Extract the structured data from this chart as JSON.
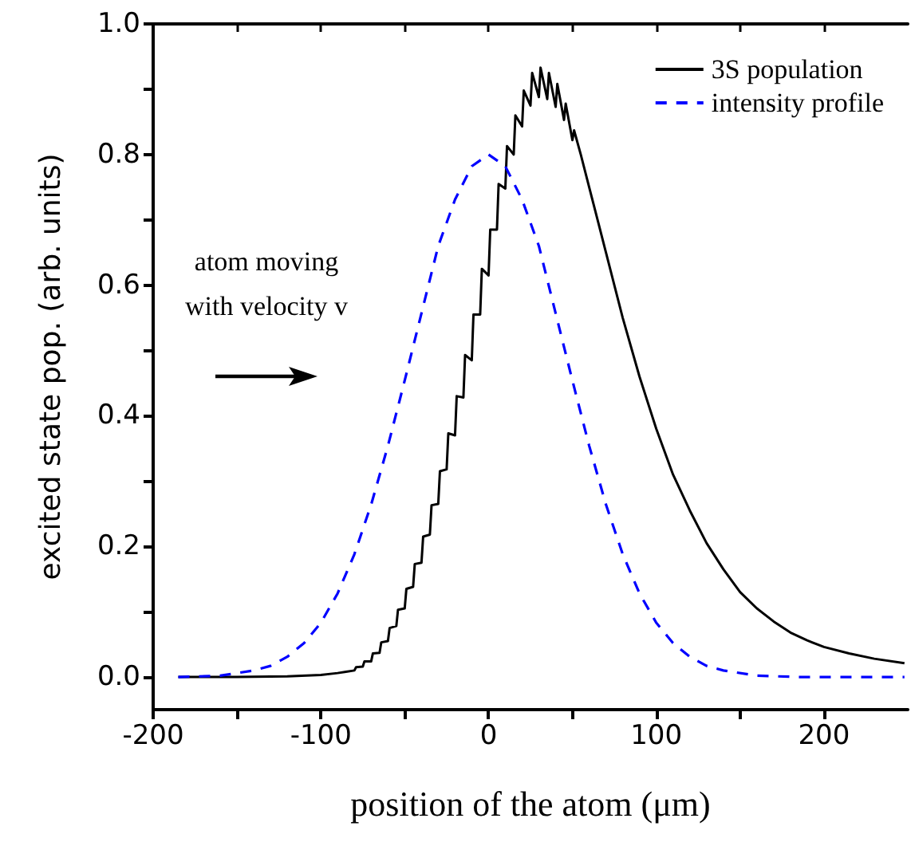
{
  "chart_data": {
    "type": "line",
    "xlabel": "position of the atom (μm)",
    "ylabel": "excited state pop. (arb. units)",
    "annotations": [
      "atom moving\nwith velocity v"
    ],
    "xlim": [
      -200,
      250
    ],
    "xticks": [
      -200,
      {
        "value": -150,
        "label": null
      },
      -100,
      {
        "value": -50,
        "label": null
      },
      0,
      {
        "value": 50,
        "label": null
      },
      100,
      {
        "value": 150,
        "label": null
      },
      200
    ],
    "ylim": [
      -0.05,
      1.0
    ],
    "yticks": [
      {
        "value": 0,
        "label": "0.0"
      },
      {
        "value": 0.1,
        "label": null
      },
      {
        "value": 0.2,
        "label": "0.2"
      },
      {
        "value": 0.3,
        "label": null
      },
      {
        "value": 0.4,
        "label": "0.4"
      },
      {
        "value": 0.5,
        "label": null
      },
      {
        "value": 0.6,
        "label": "0.6"
      },
      {
        "value": 0.7,
        "label": null
      },
      {
        "value": 0.8,
        "label": "0.8"
      },
      {
        "value": 0.9,
        "label": null
      },
      {
        "value": 1.0,
        "label": "1.0"
      }
    ],
    "grid": false,
    "legend": "top right",
    "marker": "none",
    "series": [
      {
        "name": "3S population",
        "color": "#000000",
        "line_style": "solid",
        "x": [
          -185,
          -150,
          -120,
          -100,
          -90,
          -85,
          -80,
          -79,
          -75,
          -74,
          -70,
          -69,
          -65,
          -64,
          -60,
          -59,
          -55,
          -54,
          -50,
          -49,
          -45,
          -44,
          -40,
          -39,
          -35,
          -34,
          -30,
          -29,
          -25,
          -24,
          -20,
          -19,
          -15,
          -14,
          -10,
          -9,
          -5,
          -4,
          0,
          1,
          5,
          6,
          10,
          11,
          15,
          16,
          20,
          21,
          25,
          26,
          30,
          31,
          35,
          36,
          40,
          41,
          45,
          46,
          50,
          51,
          55,
          60,
          65,
          70,
          80,
          90,
          100,
          110,
          120,
          130,
          140,
          150,
          160,
          170,
          180,
          190,
          200,
          215,
          230,
          248
        ],
        "values": [
          0,
          0,
          0.001,
          0.003,
          0.006,
          0.008,
          0.01,
          0.015,
          0.016,
          0.024,
          0.024,
          0.036,
          0.037,
          0.053,
          0.055,
          0.075,
          0.078,
          0.103,
          0.105,
          0.135,
          0.138,
          0.173,
          0.175,
          0.215,
          0.218,
          0.263,
          0.265,
          0.315,
          0.318,
          0.373,
          0.37,
          0.43,
          0.428,
          0.493,
          0.485,
          0.555,
          0.555,
          0.625,
          0.615,
          0.685,
          0.685,
          0.755,
          0.748,
          0.813,
          0.8,
          0.86,
          0.843,
          0.898,
          0.875,
          0.925,
          0.888,
          0.933,
          0.885,
          0.925,
          0.873,
          0.908,
          0.853,
          0.878,
          0.822,
          0.837,
          0.8,
          0.75,
          0.7,
          0.65,
          0.55,
          0.46,
          0.38,
          0.31,
          0.255,
          0.205,
          0.165,
          0.13,
          0.105,
          0.085,
          0.068,
          0.056,
          0.046,
          0.036,
          0.028,
          0.021
        ]
      },
      {
        "name": "intensity profile",
        "color": "#0000ff",
        "line_style": "dashed",
        "x": [
          -185,
          -160,
          -140,
          -130,
          -120,
          -110,
          -100,
          -90,
          -80,
          -70,
          -60,
          -50,
          -40,
          -30,
          -20,
          -10,
          0,
          10,
          20,
          30,
          40,
          50,
          60,
          70,
          80,
          90,
          100,
          110,
          120,
          130,
          140,
          160,
          185,
          248
        ],
        "values": [
          0,
          0.002,
          0.01,
          0.017,
          0.031,
          0.052,
          0.083,
          0.128,
          0.188,
          0.264,
          0.354,
          0.454,
          0.557,
          0.66,
          0.731,
          0.782,
          0.8,
          0.782,
          0.731,
          0.66,
          0.557,
          0.454,
          0.354,
          0.264,
          0.188,
          0.128,
          0.083,
          0.052,
          0.031,
          0.017,
          0.01,
          0.002,
          0,
          0
        ]
      }
    ]
  }
}
